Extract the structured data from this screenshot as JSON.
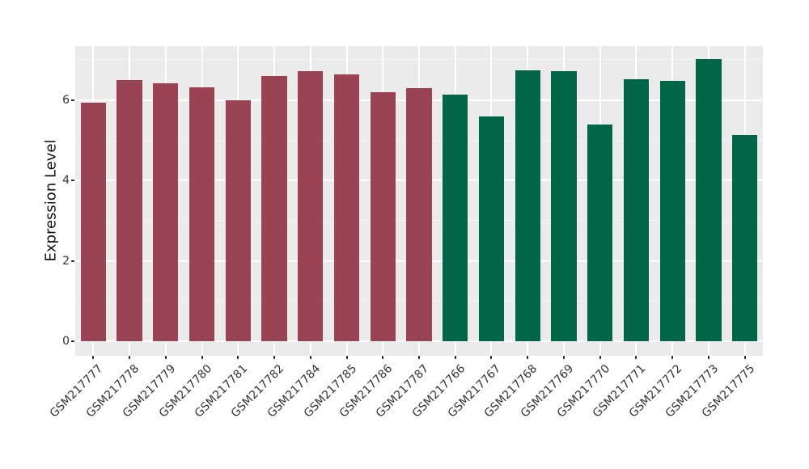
{
  "chart_data": {
    "type": "bar",
    "title": "",
    "xlabel": "",
    "ylabel": "Expression Level",
    "categories": [
      "GSM217777",
      "GSM217778",
      "GSM217779",
      "GSM217780",
      "GSM217781",
      "GSM217782",
      "GSM217784",
      "GSM217785",
      "GSM217786",
      "GSM217787",
      "GSM217766",
      "GSM217767",
      "GSM217768",
      "GSM217769",
      "GSM217770",
      "GSM217771",
      "GSM217772",
      "GSM217773",
      "GSM217775"
    ],
    "values": [
      5.94,
      6.5,
      6.42,
      6.32,
      6.0,
      6.6,
      6.71,
      6.63,
      6.19,
      6.3,
      6.13,
      5.6,
      6.74,
      6.72,
      5.38,
      6.51,
      6.48,
      7.02,
      5.13
    ],
    "groups": [
      0,
      0,
      0,
      0,
      0,
      0,
      0,
      0,
      0,
      0,
      1,
      1,
      1,
      1,
      1,
      1,
      1,
      1,
      1
    ],
    "group_colors": [
      "#9A4354",
      "#006647"
    ],
    "ylim": [
      -0.36,
      7.34
    ],
    "yticks": [
      0,
      2,
      4,
      6
    ],
    "ytick_labels": [
      "0",
      "2",
      "4",
      "6"
    ],
    "minor_yticks": [
      1,
      3,
      5,
      7
    ],
    "bar_width_fraction": 0.7,
    "legend": "none",
    "grid": "horizontal major+minor, vertical major at category centers",
    "colors": {
      "panel_bg": "#EBEBEB",
      "grid_major": "#FFFFFF",
      "grid_minor": "#F4F4F4",
      "axis_text": "#333333",
      "axis_title": "#111111",
      "tick_mark": "#333333",
      "background": "#FFFFFF"
    }
  }
}
